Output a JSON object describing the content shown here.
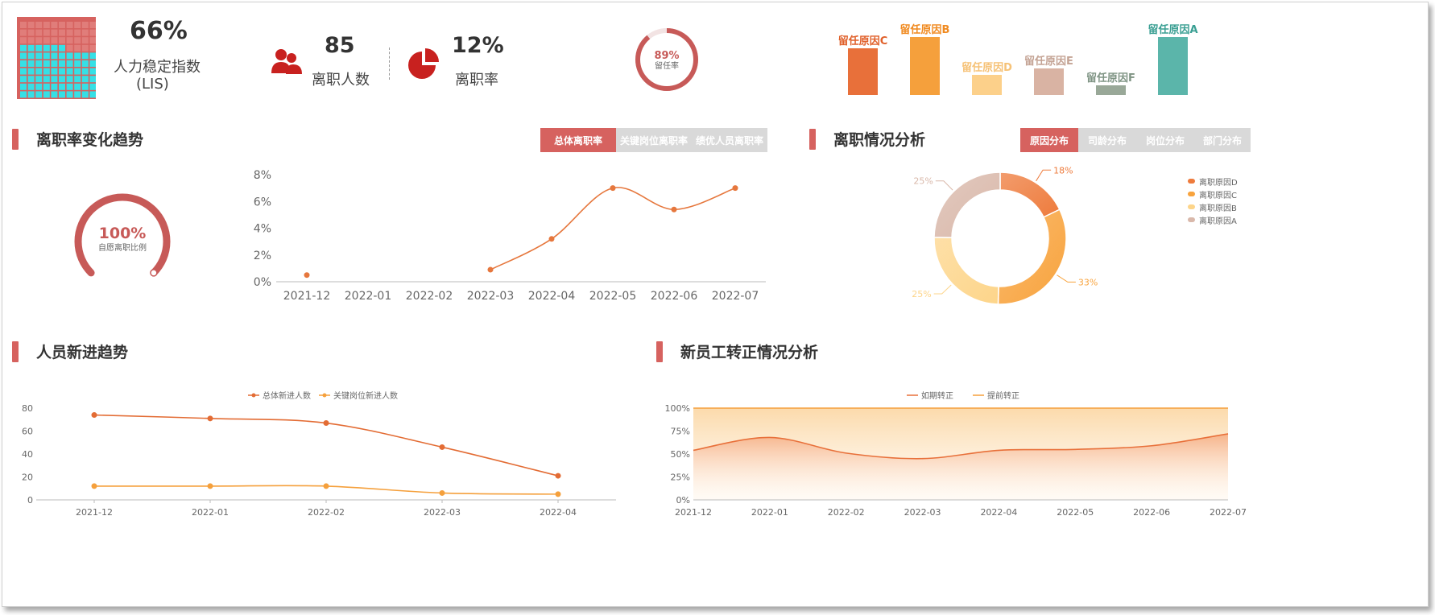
{
  "kpis": {
    "lis": {
      "value": "66%",
      "label": "人力稳定指数",
      "sub": "(LIS)",
      "fill_fraction": 0.66
    },
    "leavers": {
      "value": "85",
      "label": "离职人数"
    },
    "rate": {
      "value": "12%",
      "label": "离职率"
    },
    "retention": {
      "value": "89%",
      "label": "留任率",
      "fraction": 0.89
    }
  },
  "retention_bars": {
    "type": "bar",
    "categories": [
      "留任原因C",
      "留任原因B",
      "留任原因D",
      "留任原因E",
      "留任原因F",
      "留任原因A"
    ],
    "values": [
      58,
      72,
      25,
      33,
      12,
      72
    ],
    "colors": [
      "#e8703a",
      "#f5a03c",
      "#fcd08a",
      "#d9b3a3",
      "#99a898",
      "#5bb5aa"
    ],
    "label_colors": [
      "#e0602a",
      "#f08a20",
      "#f6c277",
      "#c4a394",
      "#7f9484",
      "#3a9f93"
    ]
  },
  "sections": {
    "turnover_trend": "离职率变化趋势",
    "turnover_analysis": "离职情况分析",
    "new_hire_trend": "人员新进趋势",
    "probation": "新员工转正情况分析"
  },
  "tabs_trend": [
    {
      "label": "总体离职率",
      "active": true
    },
    {
      "label": "关键岗位离职率",
      "active": false
    },
    {
      "label": "绩优人员离职率",
      "active": false
    }
  ],
  "tabs_analysis": [
    {
      "label": "原因分布",
      "active": true
    },
    {
      "label": "司龄分布",
      "active": false
    },
    {
      "label": "岗位分布",
      "active": false
    },
    {
      "label": "部门分布",
      "active": false
    }
  ],
  "voluntary_gauge": {
    "value": "100%",
    "label": "自愿离职比例",
    "fraction": 1.0
  },
  "chart_data": [
    {
      "type": "line",
      "categories": [
        "2021-12",
        "2022-01",
        "2022-02",
        "2022-03",
        "2022-04",
        "2022-05",
        "2022-06",
        "2022-07"
      ],
      "values": [
        0.5,
        null,
        null,
        0.9,
        3.2,
        7.0,
        5.4,
        7.0
      ],
      "yticks": [
        "0%",
        "2%",
        "4%",
        "6%",
        "8%"
      ],
      "ylim": [
        0,
        8
      ]
    },
    {
      "type": "pie",
      "slices": [
        {
          "name": "离职原因D",
          "value": 18,
          "label": "18%",
          "color": "#ee7b3c"
        },
        {
          "name": "离职原因C",
          "value": 33,
          "label": "33%",
          "color": "#f8a33d"
        },
        {
          "name": "离职原因B",
          "value": 25,
          "label": "25%",
          "color": "#fdd58a"
        },
        {
          "name": "离职原因A",
          "value": 25,
          "label": "25%",
          "color": "#d9b8aa"
        }
      ]
    },
    {
      "type": "line",
      "categories": [
        "2021-12",
        "2022-01",
        "2022-02",
        "2022-03",
        "2022-04"
      ],
      "series": [
        {
          "name": "总体新进人数",
          "values": [
            74,
            71,
            67,
            46,
            21
          ],
          "color": "#e36c34"
        },
        {
          "name": "关键岗位新进人数",
          "values": [
            12,
            12,
            12,
            6,
            5
          ],
          "color": "#f5a03c"
        }
      ],
      "yticks": [
        "0",
        "20",
        "40",
        "60",
        "80"
      ],
      "ylim": [
        0,
        80
      ]
    },
    {
      "type": "area",
      "categories": [
        "2021-12",
        "2022-01",
        "2022-02",
        "2022-03",
        "2022-04",
        "2022-05",
        "2022-06",
        "2022-07"
      ],
      "series": [
        {
          "name": "如期转正",
          "values": [
            54,
            68,
            51,
            45,
            54,
            55,
            59,
            72
          ],
          "color": "#e8703a"
        },
        {
          "name": "提前转正",
          "values": [
            100,
            100,
            100,
            100,
            100,
            100,
            100,
            100
          ],
          "color": "#f5a03c"
        }
      ],
      "yticks": [
        "0%",
        "25%",
        "50%",
        "75%",
        "100%"
      ],
      "ylim": [
        0,
        100
      ]
    }
  ]
}
